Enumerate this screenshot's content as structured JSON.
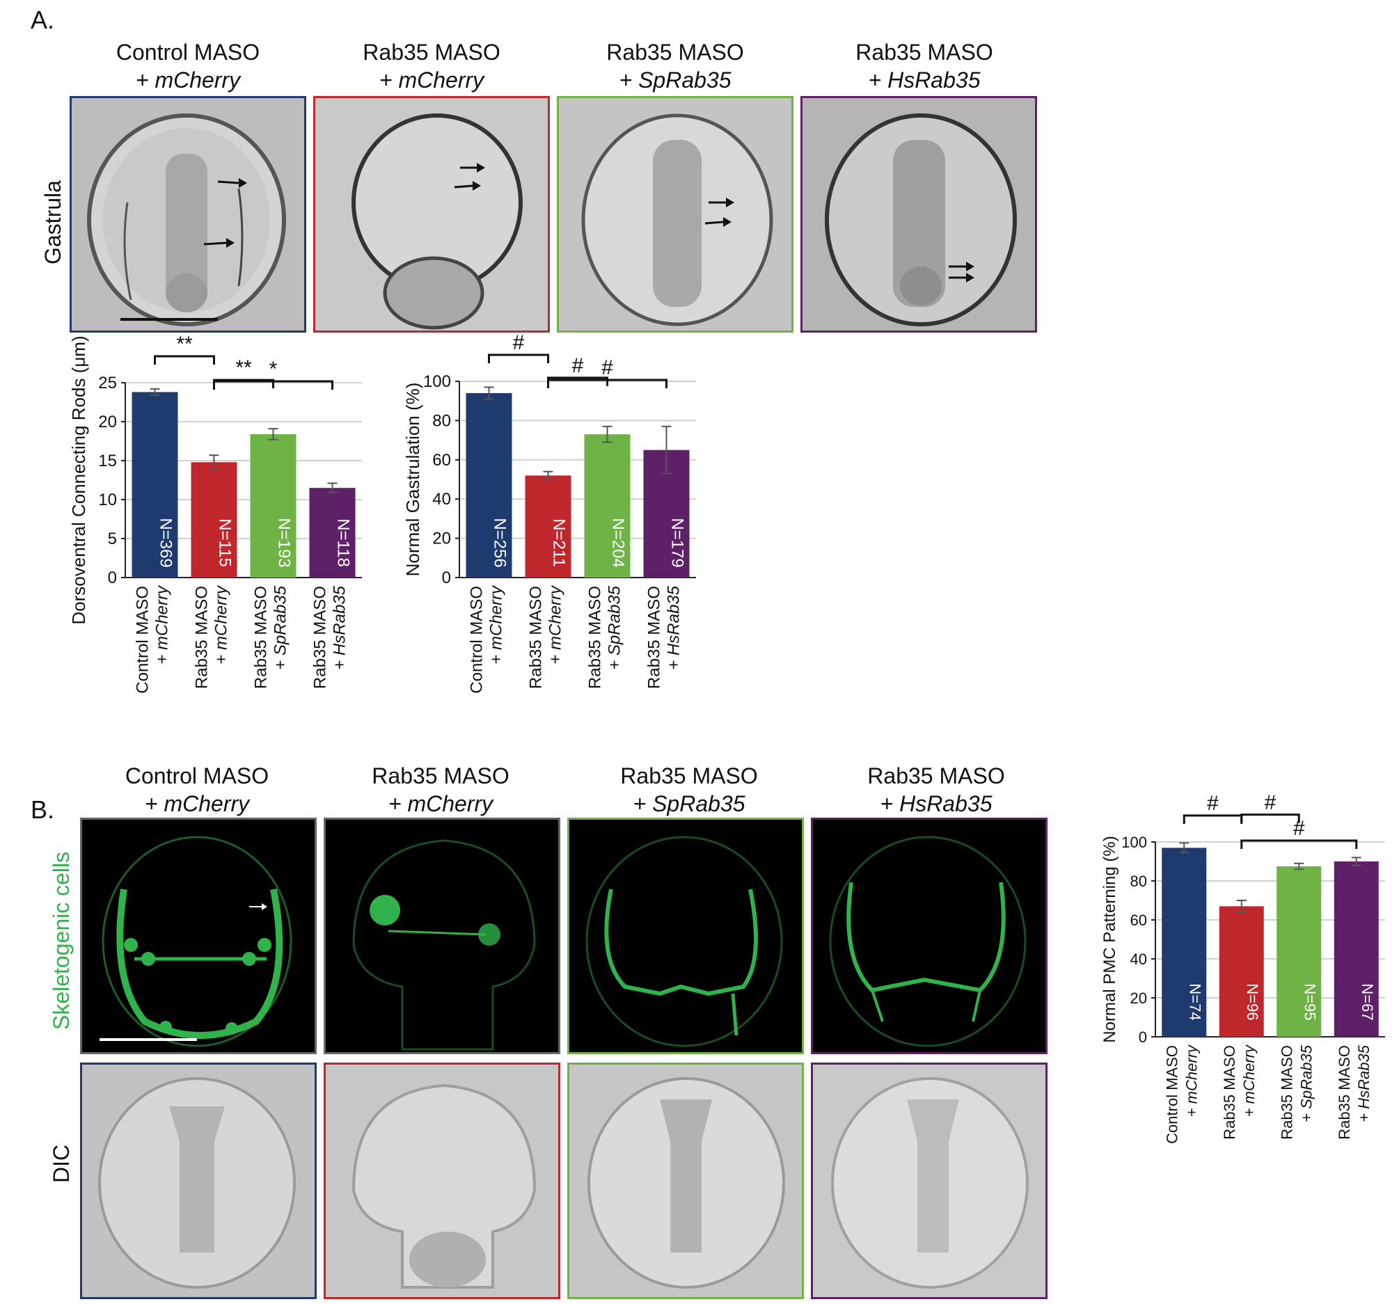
{
  "panel_a_label": "A.",
  "panel_b_label": "B.",
  "columns": [
    {
      "line1": "Control MASO",
      "line2": "+ mCherry",
      "color": "#1f3a6e"
    },
    {
      "line1": "Rab35 MASO",
      "line2": "+ mCherry",
      "color": "#c0272d"
    },
    {
      "line1": "Rab35 MASO",
      "line2": "+ SpRab35",
      "color": "#6fb245"
    },
    {
      "line1": "Rab35 MASO",
      "line2": "+ HsRab35",
      "color": "#5e2066"
    }
  ],
  "row_labels": {
    "gastrula": "Gastrula",
    "skeletogenic": "Skeletogenic cells",
    "dic": "DIC"
  },
  "colors": {
    "skeletogenic_green": "#2fb34a",
    "fluor_bg": "#000000",
    "dic_bg": "#bdbdbd",
    "fluor_border": "#666666"
  },
  "chart_data": [
    {
      "type": "bar",
      "categories": [
        "Control MASO\n+ mCherry",
        "Rab35 MASO\n+ mCherry",
        "Rab35 MASO\n+ SpRab35",
        "Rab35 MASO\n+ HsRab35"
      ],
      "values": [
        23.8,
        14.8,
        18.4,
        11.5
      ],
      "errors": [
        0.4,
        0.9,
        0.7,
        0.6
      ],
      "n_labels": [
        "N=369",
        "N=115",
        "N=193",
        "N=118"
      ],
      "ylabel": "Dorsoventral Connecting Rods (μm)",
      "ylim": [
        0,
        25
      ],
      "yticks": [
        0,
        5,
        10,
        15,
        20,
        25
      ],
      "significance": [
        {
          "from": 0,
          "to": 1,
          "label": "**"
        },
        {
          "from": 1,
          "to": 2,
          "label": "**"
        },
        {
          "from": 1,
          "to": 3,
          "label": "*"
        }
      ],
      "grid": true
    },
    {
      "type": "bar",
      "categories": [
        "Control MASO\n+ mCherry",
        "Rab35 MASO\n+ mCherry",
        "Rab35 MASO\n+ SpRab35",
        "Rab35 MASO\n+ HsRab35"
      ],
      "values": [
        94,
        52,
        73,
        65
      ],
      "errors": [
        3,
        2,
        4,
        12
      ],
      "n_labels": [
        "N=256",
        "N=211",
        "N=204",
        "N=179"
      ],
      "ylabel": "Normal Gastrulation (%)",
      "ylim": [
        0,
        100
      ],
      "yticks": [
        0,
        20,
        40,
        60,
        80,
        100
      ],
      "significance": [
        {
          "from": 0,
          "to": 1,
          "label": "#"
        },
        {
          "from": 1,
          "to": 2,
          "label": "#"
        },
        {
          "from": 1,
          "to": 3,
          "label": "#"
        }
      ],
      "grid": true
    },
    {
      "type": "bar",
      "categories": [
        "Control MASO\n+ mCherry",
        "Rab35 MASO\n+ mCherry",
        "Rab35 MASO\n+ SpRab35",
        "Rab35 MASO\n+ HsRab35"
      ],
      "values": [
        97,
        67,
        87.5,
        90
      ],
      "errors": [
        2.5,
        3,
        1.5,
        2
      ],
      "n_labels": [
        "N=74",
        "N=96",
        "N=95",
        "N=67"
      ],
      "ylabel": "Normal PMC Patterning (%)",
      "ylim": [
        0,
        100
      ],
      "yticks": [
        0,
        20,
        40,
        60,
        80,
        100
      ],
      "significance": [
        {
          "from": 0,
          "to": 1,
          "label": "#"
        },
        {
          "from": 1,
          "to": 2,
          "label": "#"
        },
        {
          "from": 1,
          "to": 3,
          "label": "#"
        }
      ],
      "grid": true
    }
  ]
}
